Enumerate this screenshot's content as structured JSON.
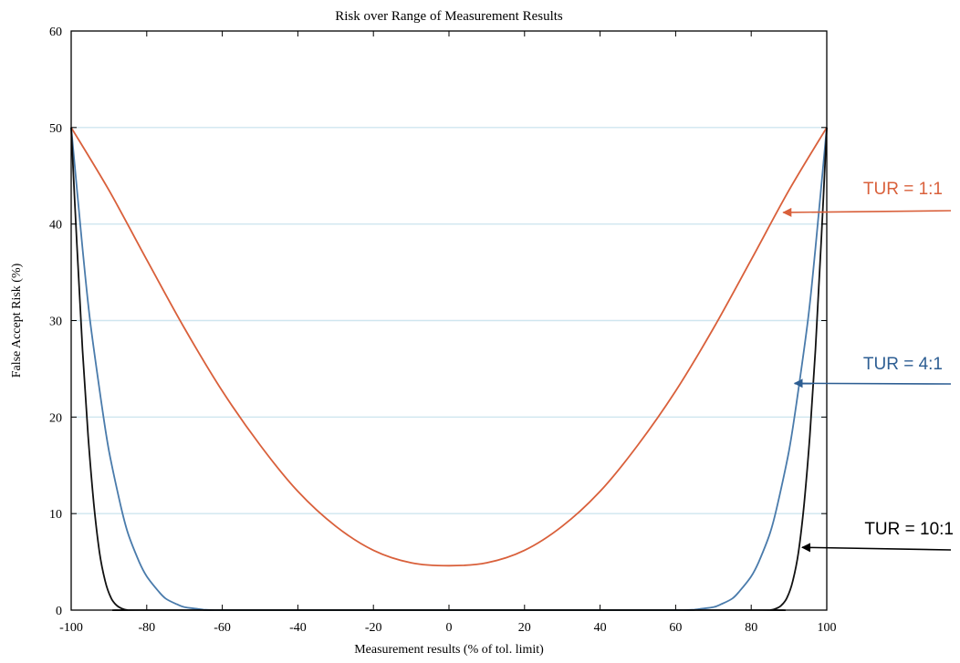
{
  "chart_data": {
    "type": "line",
    "title": "Risk over Range of Measurement Results",
    "xlabel": "Measurement results (% of tol. limit)",
    "ylabel": "False Accept Risk (%)",
    "xlim": [
      -100,
      100
    ],
    "ylim": [
      0,
      60
    ],
    "xticks": [
      -100,
      -80,
      -60,
      -40,
      -20,
      0,
      20,
      40,
      60,
      80,
      100
    ],
    "yticks": [
      0,
      10,
      20,
      30,
      40,
      50,
      60
    ],
    "grid": "horizontal",
    "legend": "none",
    "series": [
      {
        "name": "TUR = 1:1",
        "color": "#d9603b",
        "x": [
          -100,
          -90,
          -80,
          -70,
          -60,
          -50,
          -40,
          -30,
          -20,
          -10,
          0,
          10,
          20,
          30,
          40,
          50,
          60,
          70,
          80,
          90,
          100
        ],
        "y": [
          50,
          43.5,
          36.3,
          29.2,
          22.7,
          17.1,
          12.3,
          8.7,
          6.2,
          4.9,
          4.6,
          4.9,
          6.2,
          8.7,
          12.3,
          17.1,
          22.7,
          29.2,
          36.3,
          43.5,
          50
        ]
      },
      {
        "name": "TUR = 4:1",
        "color": "#4a7bab",
        "x": [
          -100,
          -97,
          -95,
          -92,
          -90,
          -87,
          -85,
          -82,
          -80,
          -77,
          -75,
          -72,
          -70,
          -67,
          -65,
          -62,
          -60,
          0,
          60,
          62,
          65,
          67,
          70,
          72,
          75,
          77,
          80,
          82,
          85,
          87,
          90,
          92,
          95,
          97,
          100
        ],
        "y": [
          50,
          37.5,
          30,
          21.5,
          16.5,
          11,
          8,
          5,
          3.5,
          2,
          1.2,
          0.6,
          0.3,
          0.15,
          0.05,
          0,
          0,
          0,
          0,
          0,
          0.05,
          0.15,
          0.3,
          0.6,
          1.2,
          2,
          3.5,
          5,
          8,
          11,
          16.5,
          21.5,
          30,
          37.5,
          50
        ]
      },
      {
        "name": "TUR = 10:1",
        "color": "#111111",
        "x": [
          -100,
          -98.5,
          -97,
          -95.5,
          -94,
          -92.5,
          -91,
          -89.5,
          -88,
          -86.5,
          -85,
          -82,
          0,
          82,
          85,
          86.5,
          88,
          89.5,
          91,
          92.5,
          94,
          95.5,
          97,
          98.5,
          100
        ],
        "y": [
          50,
          38,
          27,
          18,
          11,
          6,
          3,
          1.3,
          0.5,
          0.15,
          0,
          0,
          0,
          0,
          0,
          0.15,
          0.5,
          1.3,
          3,
          6,
          11,
          18,
          27,
          38,
          50
        ]
      }
    ],
    "annotations": [
      {
        "label": "TUR = 1:1",
        "series": "TUR = 1:1",
        "color": "#d9603b",
        "points_to": {
          "x": 88,
          "y": 41.2
        }
      },
      {
        "label": "TUR = 4:1",
        "series": "TUR = 4:1",
        "color": "#2d5e93",
        "points_to": {
          "x": 91,
          "y": 23.5
        }
      },
      {
        "label": "TUR = 10:1",
        "series": "TUR = 10:1",
        "color": "#000000",
        "points_to": {
          "x": 93,
          "y": 6.5
        }
      }
    ]
  }
}
